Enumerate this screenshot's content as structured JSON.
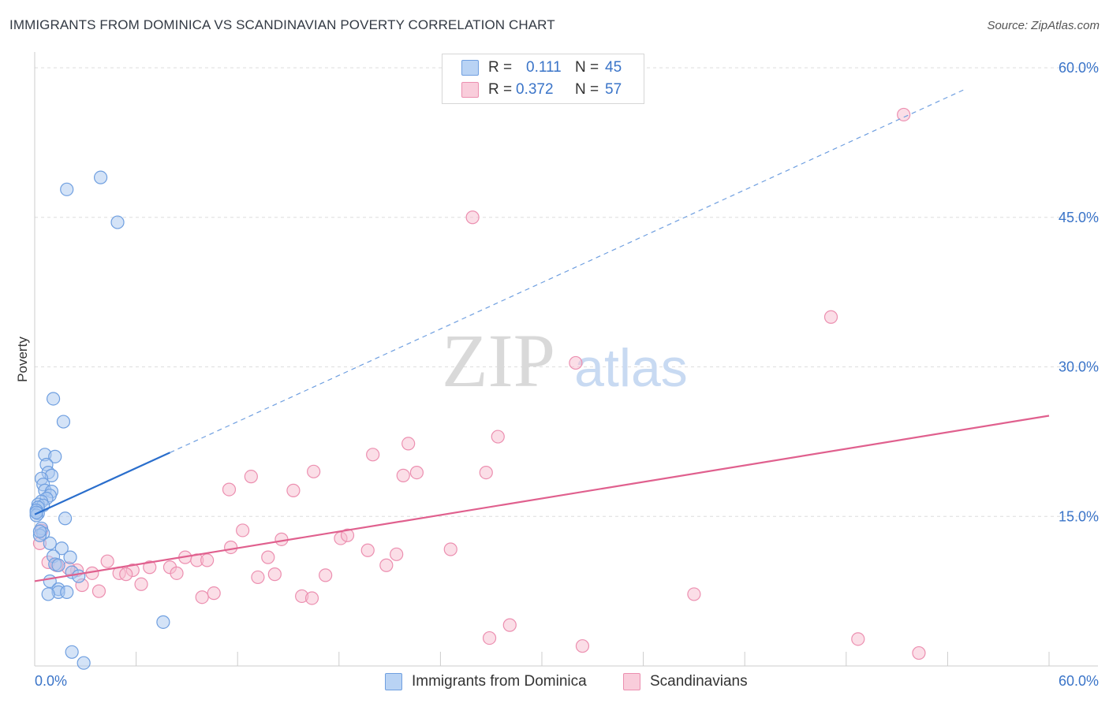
{
  "title": "IMMIGRANTS FROM DOMINICA VS SCANDINAVIAN POVERTY CORRELATION CHART",
  "source": "Source: ZipAtlas.com",
  "watermark": {
    "zip": "ZIP",
    "atlas": "atlas"
  },
  "legend_top": {
    "blue": {
      "r_label": "R =",
      "r_value": "0.111",
      "n_label": "N =",
      "n_value": "45"
    },
    "pink": {
      "r_label": "R =",
      "r_value": "0.372",
      "n_label": "N =",
      "n_value": "57"
    }
  },
  "legend_bottom": {
    "blue": "Immigrants from Dominica",
    "pink": "Scandinavians"
  },
  "colors": {
    "blue_fill": "#a9c8f0",
    "blue_stroke": "#6f9fe0",
    "blue_line": "#2a6ecc",
    "pink_fill": "#f7bdd0",
    "pink_stroke": "#ec8fb0",
    "pink_line": "#e0608e",
    "axis_label": "#3a74c8",
    "grid": "#dddddd"
  },
  "chart_data": {
    "type": "scatter",
    "title": "IMMIGRANTS FROM DOMINICA VS SCANDINAVIAN POVERTY CORRELATION CHART",
    "xlabel": "",
    "ylabel": "Poverty",
    "xlim": [
      0,
      60
    ],
    "ylim": [
      0,
      60
    ],
    "x_tick_labels": [
      {
        "value": 0,
        "label": "0.0%"
      },
      {
        "value": 60,
        "label": "60.0%"
      }
    ],
    "y_tick_labels": [
      {
        "value": 15,
        "label": "15.0%"
      },
      {
        "value": 30,
        "label": "30.0%"
      },
      {
        "value": 45,
        "label": "45.0%"
      },
      {
        "value": 60,
        "label": "60.0%"
      }
    ],
    "series": [
      {
        "name": "Immigrants from Dominica",
        "color": "blue",
        "points": [
          [
            3.9,
            49.0
          ],
          [
            1.9,
            47.8
          ],
          [
            4.9,
            44.5
          ],
          [
            1.1,
            26.8
          ],
          [
            1.7,
            24.5
          ],
          [
            0.6,
            21.2
          ],
          [
            1.2,
            21.0
          ],
          [
            0.7,
            20.2
          ],
          [
            0.8,
            19.4
          ],
          [
            1.0,
            19.1
          ],
          [
            0.4,
            18.8
          ],
          [
            0.5,
            18.2
          ],
          [
            0.6,
            17.6
          ],
          [
            1.0,
            17.5
          ],
          [
            0.9,
            17.1
          ],
          [
            0.7,
            16.8
          ],
          [
            0.4,
            16.5
          ],
          [
            0.2,
            16.2
          ],
          [
            0.5,
            16.1
          ],
          [
            0.2,
            15.9
          ],
          [
            0.1,
            15.6
          ],
          [
            0.2,
            15.3
          ],
          [
            0.1,
            15.1
          ],
          [
            1.8,
            14.8
          ],
          [
            0.4,
            13.8
          ],
          [
            0.5,
            13.3
          ],
          [
            0.3,
            13.1
          ],
          [
            0.9,
            12.3
          ],
          [
            1.6,
            11.8
          ],
          [
            1.1,
            11.0
          ],
          [
            2.1,
            10.9
          ],
          [
            1.2,
            10.2
          ],
          [
            1.4,
            10.1
          ],
          [
            2.2,
            9.4
          ],
          [
            2.6,
            9.0
          ],
          [
            0.9,
            8.5
          ],
          [
            1.4,
            7.7
          ],
          [
            1.4,
            7.4
          ],
          [
            1.9,
            7.4
          ],
          [
            0.8,
            7.2
          ],
          [
            7.6,
            4.4
          ],
          [
            2.2,
            1.4
          ],
          [
            2.9,
            0.3
          ],
          [
            0.1,
            15.4
          ],
          [
            0.3,
            13.5
          ]
        ]
      },
      {
        "name": "Scandinavians",
        "color": "pink",
        "points": [
          [
            51.4,
            55.3
          ],
          [
            25.9,
            45.0
          ],
          [
            47.1,
            35.0
          ],
          [
            32.0,
            30.4
          ],
          [
            27.4,
            23.0
          ],
          [
            22.1,
            22.3
          ],
          [
            20.0,
            21.2
          ],
          [
            16.5,
            19.5
          ],
          [
            22.6,
            19.4
          ],
          [
            21.8,
            19.1
          ],
          [
            26.7,
            19.4
          ],
          [
            12.8,
            19.0
          ],
          [
            11.5,
            17.7
          ],
          [
            15.3,
            17.6
          ],
          [
            0.4,
            13.6
          ],
          [
            0.3,
            12.3
          ],
          [
            12.3,
            13.6
          ],
          [
            14.6,
            12.7
          ],
          [
            18.1,
            12.8
          ],
          [
            18.5,
            13.1
          ],
          [
            11.6,
            11.9
          ],
          [
            19.7,
            11.6
          ],
          [
            21.4,
            11.2
          ],
          [
            24.6,
            11.7
          ],
          [
            13.8,
            10.9
          ],
          [
            8.9,
            10.9
          ],
          [
            9.6,
            10.6
          ],
          [
            10.2,
            10.6
          ],
          [
            4.3,
            10.5
          ],
          [
            0.8,
            10.4
          ],
          [
            1.3,
            10.1
          ],
          [
            20.8,
            10.1
          ],
          [
            6.8,
            9.9
          ],
          [
            8.0,
            9.9
          ],
          [
            5.8,
            9.6
          ],
          [
            2.5,
            9.6
          ],
          [
            3.4,
            9.3
          ],
          [
            5.0,
            9.3
          ],
          [
            5.4,
            9.2
          ],
          [
            8.4,
            9.3
          ],
          [
            14.2,
            9.2
          ],
          [
            17.2,
            9.1
          ],
          [
            13.2,
            8.9
          ],
          [
            2.8,
            8.1
          ],
          [
            6.3,
            8.2
          ],
          [
            3.8,
            7.5
          ],
          [
            10.6,
            7.3
          ],
          [
            15.8,
            7.0
          ],
          [
            16.4,
            6.8
          ],
          [
            39.0,
            7.2
          ],
          [
            9.9,
            6.9
          ],
          [
            28.1,
            4.1
          ],
          [
            26.9,
            2.8
          ],
          [
            32.4,
            2.0
          ],
          [
            48.7,
            2.7
          ],
          [
            52.3,
            1.3
          ],
          [
            2.0,
            9.8
          ]
        ]
      }
    ],
    "trend_lines": [
      {
        "series": "Immigrants from Dominica",
        "x0": 0,
        "y0": 15.2,
        "x1": 8,
        "y1": 21.4,
        "extended_to_x": 55,
        "style": "solid then dashed"
      },
      {
        "series": "Scandinavians",
        "x0": 0,
        "y0": 8.5,
        "x1": 60,
        "y1": 25.1,
        "style": "solid"
      }
    ]
  }
}
